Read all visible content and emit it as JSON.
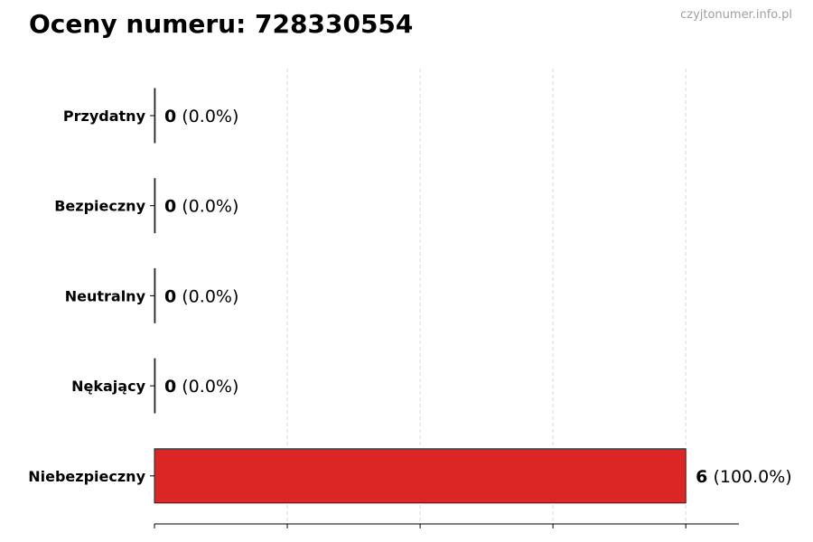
{
  "watermark": "czyjtonumer.info.pl",
  "chart_data": {
    "type": "bar",
    "orientation": "horizontal",
    "title": "Oceny numeru: 728330554",
    "categories": [
      "Przydatny",
      "Bezpieczny",
      "Neutralny",
      "Nękający",
      "Niebezpieczny"
    ],
    "values": [
      0,
      0,
      0,
      0,
      6
    ],
    "percent_labels": [
      "(0.0%)",
      "(0.0%)",
      "(0.0%)",
      "(0.0%)",
      "(100.0%)"
    ],
    "xlim": [
      0,
      6.6
    ],
    "x_gridlines": [
      0,
      1.5,
      3,
      4.5,
      6
    ],
    "grid": true,
    "bar_color": "#dc2626",
    "xlabel": "",
    "ylabel": ""
  }
}
